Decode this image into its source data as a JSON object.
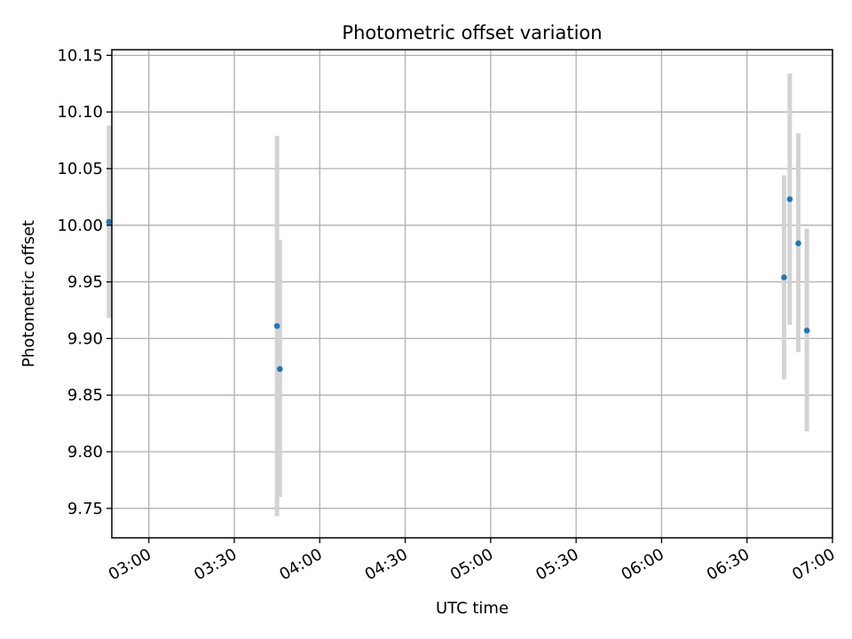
{
  "chart_data": {
    "type": "scatter",
    "title": "Photometric offset variation",
    "xlabel": "UTC time",
    "ylabel": "Photometric offset",
    "x_unit": "time of day (UTC)",
    "xlim": [
      "02:47",
      "07:00"
    ],
    "ylim": [
      9.724,
      10.155
    ],
    "x_ticks": [
      "03:00",
      "03:30",
      "04:00",
      "04:30",
      "05:00",
      "05:30",
      "06:00",
      "06:30",
      "07:00"
    ],
    "y_ticks": [
      "9.75",
      "9.80",
      "9.85",
      "9.90",
      "9.95",
      "10.00",
      "10.05",
      "10.10",
      "10.15"
    ],
    "grid": true,
    "legend": "none",
    "colors": {
      "point": "#1f77b4",
      "error_bar": "#d3d3d3",
      "grid": "#b0b0b0"
    },
    "series": [
      {
        "points": [
          {
            "x": "02:46",
            "y": 10.003,
            "y_low": 9.918,
            "y_high": 10.088
          },
          {
            "x": "03:45",
            "y": 9.911,
            "y_low": 9.743,
            "y_high": 10.079
          },
          {
            "x": "03:46",
            "y": 9.873,
            "y_low": 9.76,
            "y_high": 9.987
          },
          {
            "x": "06:43",
            "y": 9.954,
            "y_low": 9.864,
            "y_high": 10.044
          },
          {
            "x": "06:45",
            "y": 10.023,
            "y_low": 9.912,
            "y_high": 10.134
          },
          {
            "x": "06:48",
            "y": 9.984,
            "y_low": 9.888,
            "y_high": 10.081
          },
          {
            "x": "06:51",
            "y": 9.907,
            "y_low": 9.818,
            "y_high": 9.997
          }
        ]
      }
    ]
  }
}
